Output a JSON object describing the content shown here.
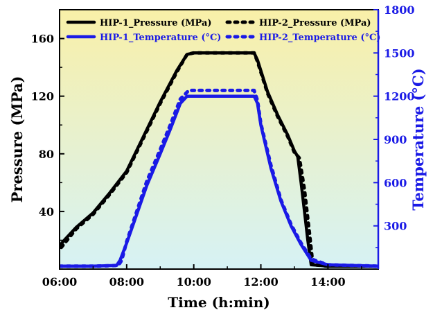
{
  "chart_data": {
    "type": "line",
    "title": "",
    "xlabel": "Time (h:min)",
    "ylabel_left": "Pressure (MPa)",
    "ylabel_right": "Temperature (°C)",
    "x_unit": "hours",
    "xlim": [
      6.0,
      15.5
    ],
    "ylim_left": [
      0,
      180
    ],
    "ylim_right": [
      0,
      1800
    ],
    "x_ticks": [
      {
        "value": 6,
        "label": "06:00"
      },
      {
        "value": 8,
        "label": "08:00"
      },
      {
        "value": 10,
        "label": "10:00"
      },
      {
        "value": 12,
        "label": "12:00"
      },
      {
        "value": 14,
        "label": "14:00"
      }
    ],
    "y_ticks_left": [
      {
        "value": 40,
        "label": "40"
      },
      {
        "value": 80,
        "label": "80"
      },
      {
        "value": 120,
        "label": "120"
      },
      {
        "value": 160,
        "label": "160"
      }
    ],
    "y_ticks_right": [
      {
        "value": 300,
        "label": "300"
      },
      {
        "value": 600,
        "label": "600"
      },
      {
        "value": 900,
        "label": "900"
      },
      {
        "value": 1200,
        "label": "1200"
      },
      {
        "value": 1500,
        "label": "1500"
      },
      {
        "value": 1800,
        "label": "1800"
      }
    ],
    "background_gradient": {
      "top": "#f9f0a8",
      "bottom": "#d6f2f5"
    },
    "colors": {
      "pressure": "#000000",
      "temperature": "#1a1ae6",
      "right_axis": "#1a1ae6",
      "left_axis": "#000000"
    },
    "grid": false,
    "legend_position": "top",
    "series": [
      {
        "name": "HIP-1_Pressure (MPa)",
        "axis": "left",
        "style": "solid",
        "color": "#000000",
        "x": [
          6.0,
          6.1,
          6.5,
          7.0,
          7.5,
          8.0,
          8.5,
          9.0,
          9.5,
          9.8,
          10.0,
          11.0,
          11.8,
          11.9,
          12.2,
          12.5,
          12.8,
          13.0,
          13.1,
          13.2,
          13.3,
          13.4,
          13.5,
          14.0,
          15.5
        ],
        "y": [
          16,
          19,
          29,
          39,
          53,
          68,
          92,
          116,
          138,
          149,
          150,
          150,
          150,
          145,
          123,
          107,
          93,
          82,
          78,
          60,
          40,
          20,
          3,
          2,
          2
        ]
      },
      {
        "name": "HIP-2_Pressure (MPa)",
        "axis": "left",
        "style": "dashed",
        "color": "#000000",
        "x": [
          6.05,
          6.5,
          7.0,
          7.5,
          8.0,
          8.5,
          9.0,
          9.5,
          9.8,
          10.0,
          11.0,
          11.8,
          11.9,
          12.2,
          12.5,
          12.8,
          13.0,
          13.15,
          13.3,
          13.45,
          13.55,
          14.0
        ],
        "y": [
          15,
          28,
          38,
          52,
          67,
          91,
          115,
          137,
          149,
          150,
          150,
          150,
          144,
          122,
          106,
          92,
          81,
          77,
          55,
          25,
          3,
          2
        ]
      },
      {
        "name": "HIP-1_Temperature (°C)",
        "axis": "right",
        "style": "solid",
        "color": "#1a1ae6",
        "x": [
          6.0,
          7.0,
          7.7,
          7.8,
          8.0,
          8.3,
          8.6,
          9.0,
          9.3,
          9.6,
          9.8,
          10.0,
          11.0,
          11.8,
          11.9,
          12.0,
          12.3,
          12.6,
          12.9,
          13.2,
          13.5,
          14.0,
          15.5
        ],
        "y": [
          20,
          20,
          25,
          60,
          180,
          380,
          580,
          800,
          970,
          1150,
          1200,
          1200,
          1200,
          1200,
          1150,
          1000,
          700,
          470,
          300,
          170,
          60,
          30,
          20
        ]
      },
      {
        "name": "HIP-2_Temperature (°C)",
        "axis": "right",
        "style": "dashed",
        "color": "#1a1ae6",
        "x": [
          6.0,
          7.0,
          7.75,
          7.85,
          8.0,
          8.3,
          8.6,
          9.0,
          9.3,
          9.6,
          9.85,
          10.0,
          11.0,
          11.8,
          11.9,
          12.0,
          12.3,
          12.6,
          12.9,
          13.2,
          13.5,
          14.0,
          15.5
        ],
        "y": [
          20,
          20,
          25,
          60,
          190,
          400,
          610,
          830,
          1000,
          1180,
          1240,
          1240,
          1240,
          1240,
          1170,
          1010,
          720,
          480,
          310,
          180,
          70,
          30,
          20
        ]
      }
    ]
  }
}
